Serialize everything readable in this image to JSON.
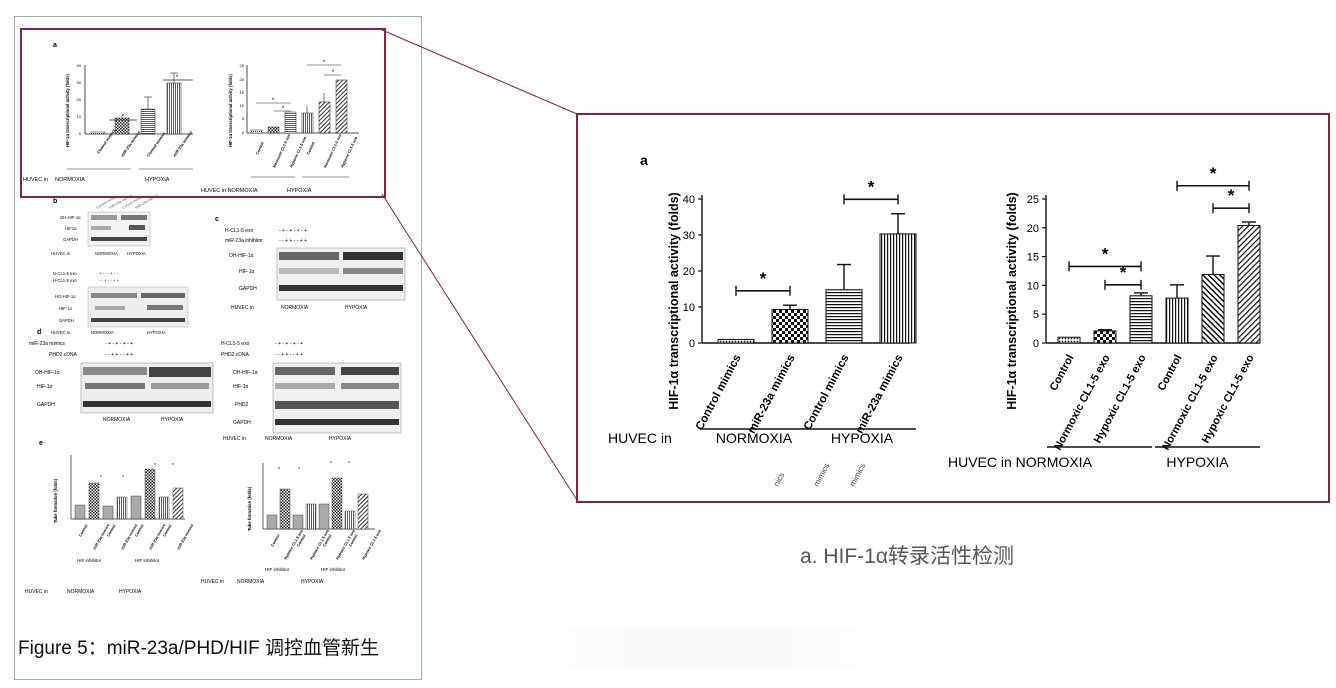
{
  "caption": {
    "figure": "Figure 5：miR-23a/PHD/HIF 调控血管新生",
    "zoom": "a. HIF-1α转录活性检测"
  },
  "colors": {
    "frame_border": "#8a2430",
    "panel_border": "#8fb6a8"
  },
  "small_figure": {
    "panel_a": {
      "letter": "a",
      "ylabel_left": "HIF-1α transcriptional activity (folds)",
      "ylabel_right": "HIF-1α transcriptional activity (folds)",
      "left_bars": [
        "Control mimics",
        "miR-23a mimics",
        "Control mimics",
        "miR-23a mimics"
      ],
      "right_bars": [
        "Control",
        "Normoxic CL1-5 exo",
        "Hypoxic CL1-5 exo",
        "Control",
        "Normoxic CL1-5 exo",
        "Hypoxic CL1-5 exo"
      ],
      "huvec_in": "HUVEC in",
      "normoxia": "NORMOXIA",
      "hypoxia": "HYPOXIA",
      "right_huvec": "HUVEC in NORMOXIA"
    },
    "panel_b": {
      "letter": "b",
      "rows1": [
        "OH-HIF-1α",
        "HIF1α",
        "GAPDH"
      ],
      "huvec": "HUVEC in",
      "normoxia": "NORMOXIA",
      "hypoxia": "HYPOXIA",
      "rows2": [
        "N-CL1-5 exo",
        "H-CL1-5 exo"
      ],
      "rows3": [
        "HO-HIF-1α",
        "HIF-1α",
        "GAPDH"
      ],
      "col_labels": [
        "Control mimics",
        "miR-23a mimics",
        "Control mimics",
        "miR-23a mimics"
      ]
    },
    "panel_c": {
      "letter": "c",
      "treat": [
        "H-CL1-5 exo",
        "miR-23a inhibitor"
      ],
      "rows": [
        "OH-HIF-1α",
        "HIF-1α",
        "GAPDH"
      ],
      "huvec": "HUVEC in",
      "normoxia": "NORMOXIA",
      "hypoxia": "HYPOXIA"
    },
    "panel_d": {
      "letter": "d",
      "treat_left": [
        "miR-23a mimics",
        "PHD2 cDNA"
      ],
      "rows_left": [
        "OH-HIF-1α",
        "HIF-1α",
        "GAPDH"
      ],
      "treat_right": [
        "H-CL1-5 exo",
        "PHD2 cDNA"
      ],
      "rows_right": [
        "OH-HIF-1α",
        "HIF-1α",
        "PHD2",
        "GAPDH"
      ],
      "huvec": "HUVEC in",
      "normoxia": "NORMOXIA",
      "hypoxia": "HYPOXIA"
    },
    "panel_e": {
      "letter": "e",
      "ylabel": "Tube formation (folds)",
      "left_bars": [
        "Control",
        "miR-23a mimics",
        "Control",
        "miR-23a mimics",
        "Control",
        "miR-23a mimics",
        "Control",
        "miR-23a mimics"
      ],
      "right_bars": [
        "Control",
        "Hypoxic CL1-5 exo",
        "Control",
        "Hypoxic CL1-5 exo",
        "Control",
        "Hypoxic CL1-5 exo",
        "Control",
        "Hypoxic CL1-5 exo"
      ],
      "hif_inhibitor": "HIF inhibitor",
      "huvec": "HUVEC in",
      "normoxia": "NORMOXIA",
      "hypoxia": "HYPOXIA"
    }
  },
  "chart_data": [
    {
      "type": "bar",
      "panel": "a",
      "ylabel": "HIF-1α transcriptional activity (folds)",
      "ylim": [
        0,
        40
      ],
      "yticks": [
        0,
        10,
        20,
        30,
        40
      ],
      "categories": [
        "Control mimics",
        "miR-23a mimics",
        "Control mimics",
        "miR-23a mimics"
      ],
      "values": [
        1,
        9.3,
        14.8,
        30.3
      ],
      "errors": [
        0,
        1.2,
        7,
        5.6
      ],
      "patterns": [
        "dots",
        "checker",
        "hstripes",
        "vstripes"
      ],
      "groups": [
        {
          "label": "NORMOXIA",
          "from": 0,
          "to": 1
        },
        {
          "label": "HYPOXIA",
          "from": 2,
          "to": 3
        }
      ],
      "group_prefix": "HUVEC in",
      "significance": [
        {
          "from": 0,
          "to": 1,
          "label": "*"
        },
        {
          "from": 2,
          "to": 3,
          "label": "*"
        }
      ],
      "stray_text": [
        "nics",
        "mimics",
        "mimics"
      ]
    },
    {
      "type": "bar",
      "ylabel": "HIF-1α transcriptional activity (folds)",
      "ylim": [
        0,
        25
      ],
      "yticks": [
        0,
        5,
        10,
        15,
        20,
        25
      ],
      "categories": [
        "Control",
        "Normoxic CL1-5 exo",
        "Hypoxic CL1-5 exo",
        "Control",
        "Normoxic CL1-5 exo",
        "Hypoxic CL1-5 exo"
      ],
      "values": [
        1,
        2.1,
        8.2,
        7.8,
        11.9,
        20.4
      ],
      "errors": [
        0,
        0.2,
        0.5,
        2.3,
        3.2,
        0.6
      ],
      "patterns": [
        "dots",
        "checker",
        "hstripes",
        "vstripes",
        "diagdense",
        "diagwide"
      ],
      "groups": [
        {
          "label": "HUVEC in NORMOXIA",
          "from": 0,
          "to": 2
        },
        {
          "label": "HYPOXIA",
          "from": 3,
          "to": 5
        }
      ],
      "significance": [
        {
          "from": 0,
          "to": 2,
          "label": "*",
          "y": 13.3
        },
        {
          "from": 1,
          "to": 2,
          "label": "*",
          "y": 10.1
        },
        {
          "from": 3,
          "to": 5,
          "label": "*",
          "y": 27.3
        },
        {
          "from": 4,
          "to": 5,
          "label": "*",
          "y": 23.4
        }
      ]
    }
  ]
}
